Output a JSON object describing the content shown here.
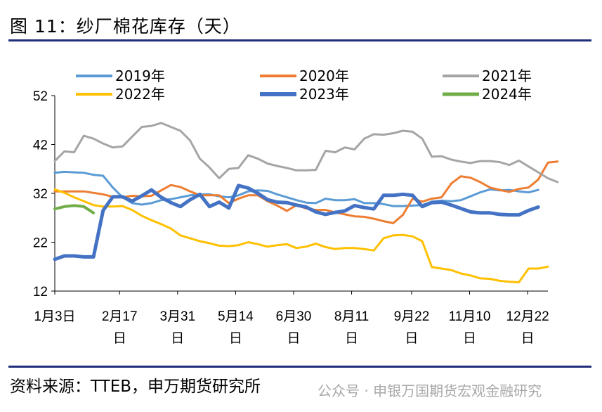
{
  "title": "图 11：纱厂棉花库存（天）",
  "source": "资料来源：TTEB，申万期货研究所",
  "watermark": "公众号 · 申银万国期货宏观金融研究",
  "chart_data": {
    "type": "line",
    "ylim": [
      12,
      52
    ],
    "yticks": [
      12,
      22,
      32,
      42,
      52
    ],
    "xlim": [
      0,
      51
    ],
    "xticks": [
      {
        "pos": 0,
        "line1": "1月3日",
        "line2": ""
      },
      {
        "pos": 6.7,
        "line1": "2月17",
        "line2": "日"
      },
      {
        "pos": 12.7,
        "line1": "3月31",
        "line2": "日"
      },
      {
        "pos": 18.7,
        "line1": "5月14",
        "line2": "日"
      },
      {
        "pos": 24.7,
        "line1": "6月30",
        "line2": "日"
      },
      {
        "pos": 30.7,
        "line1": "8月11",
        "line2": "日"
      },
      {
        "pos": 36.9,
        "line1": "9月22",
        "line2": "日"
      },
      {
        "pos": 42.9,
        "line1": "11月10",
        "line2": "日"
      },
      {
        "pos": 48.9,
        "line1": "12月22",
        "line2": "日"
      }
    ],
    "legend_position": "top",
    "series": [
      {
        "name": "2019年",
        "color": "#5b9bd5",
        "width": 3,
        "values": [
          36.2,
          36.4,
          36.3,
          36.2,
          35.8,
          35.6,
          33.2,
          31.2,
          30.0,
          29.7,
          30.0,
          30.6,
          30.8,
          31.2,
          31.6,
          31.8,
          31.8,
          31.4,
          31.2,
          31.6,
          32.4,
          32.6,
          32.5,
          31.8,
          31.2,
          30.6,
          30.1,
          30.0,
          30.9,
          30.6,
          30.6,
          30.8,
          30.0,
          30.0,
          29.8,
          29.4,
          29.4,
          29.5,
          29.6,
          30.3,
          30.5,
          30.4,
          30.6,
          31.4,
          32.2,
          32.8,
          32.6,
          32.7,
          32.4,
          32.2,
          32.7
        ]
      },
      {
        "name": "2020年",
        "color": "#ed7d31",
        "width": 3,
        "values": [
          32.4,
          32.4,
          32.4,
          32.4,
          32.1,
          31.8,
          31.3,
          31.2,
          31.5,
          31.4,
          31.5,
          32.6,
          33.7,
          33.3,
          32.4,
          31.6,
          31.6,
          31.6,
          30.0,
          30.9,
          31.6,
          31.6,
          30.4,
          29.5,
          28.4,
          29.6,
          28.9,
          28.6,
          28.6,
          28.1,
          27.7,
          27.3,
          27.2,
          26.8,
          26.3,
          25.9,
          27.6,
          30.9,
          30.3,
          30.9,
          31.2,
          34.0,
          35.5,
          35.2,
          34.3,
          33.2,
          32.7,
          32.3,
          32.9,
          33.2,
          34.8,
          38.3,
          38.5
        ]
      },
      {
        "name": "2021年",
        "color": "#a5a5a5",
        "width": 3,
        "values": [
          38.6,
          40.6,
          40.4,
          43.8,
          43.2,
          42.2,
          41.4,
          41.6,
          43.6,
          45.6,
          45.8,
          46.4,
          45.6,
          44.8,
          42.8,
          39.1,
          37.3,
          35.1,
          37.0,
          37.2,
          39.8,
          39.1,
          38.1,
          37.6,
          37.2,
          36.7,
          36.7,
          36.8,
          40.7,
          40.4,
          41.4,
          41.0,
          43.2,
          44.1,
          44.0,
          44.3,
          44.8,
          44.6,
          43.2,
          39.5,
          39.6,
          38.9,
          38.5,
          38.2,
          38.6,
          38.6,
          38.4,
          37.8,
          38.7,
          37.5,
          36.3,
          35.1,
          34.3
        ]
      },
      {
        "name": "2022年",
        "color": "#ffc000",
        "width": 3,
        "values": [
          32.8,
          32.1,
          31.2,
          30.4,
          29.6,
          29.3,
          29.3,
          29.4,
          28.6,
          27.4,
          26.5,
          25.7,
          24.8,
          23.4,
          22.8,
          22.2,
          21.8,
          21.3,
          21.2,
          21.4,
          22.0,
          21.6,
          21.1,
          21.4,
          21.6,
          20.8,
          21.1,
          21.7,
          21.0,
          20.6,
          20.8,
          20.8,
          20.6,
          20.3,
          22.8,
          23.4,
          23.5,
          23.2,
          22.2,
          16.9,
          16.6,
          16.3,
          15.6,
          15.2,
          14.6,
          14.5,
          14.1,
          13.9,
          13.8,
          16.6,
          16.6,
          17.0
        ]
      },
      {
        "name": "2023年",
        "color": "#4472c4",
        "width": 5,
        "values": [
          18.5,
          19.2,
          19.2,
          19.0,
          19.0,
          28.5,
          31.3,
          31.3,
          30.4,
          31.5,
          32.7,
          31.2,
          30.1,
          29.3,
          30.7,
          31.8,
          29.3,
          30.2,
          29.0,
          33.6,
          33.1,
          32.0,
          30.7,
          30.2,
          30.1,
          29.6,
          29.2,
          28.2,
          27.7,
          28.1,
          28.4,
          29.5,
          29.1,
          28.8,
          31.6,
          31.6,
          31.8,
          31.6,
          29.3,
          30.1,
          30.2,
          29.6,
          28.9,
          28.2,
          28.0,
          28.0,
          27.7,
          27.6,
          27.6,
          28.5,
          29.2
        ]
      },
      {
        "name": "2024年",
        "color": "#70ad47",
        "width": 4,
        "values": [
          28.8,
          29.3,
          29.5,
          29.3,
          28.0
        ]
      }
    ]
  }
}
